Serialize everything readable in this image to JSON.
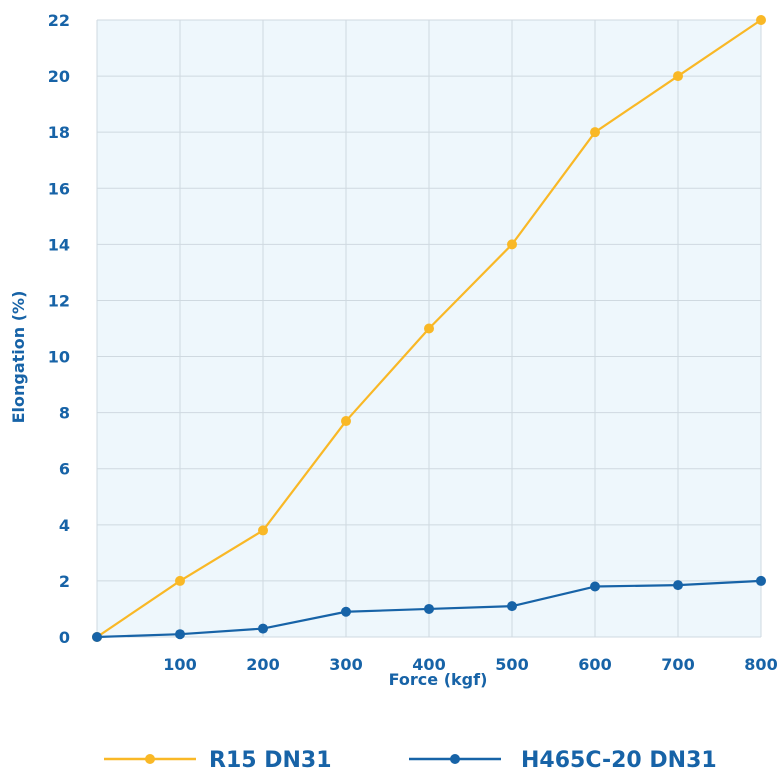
{
  "chart_data": {
    "type": "line",
    "title": "",
    "xlabel": "Force (kgf)",
    "ylabel": "Elongation (%)",
    "x": [
      0,
      100,
      200,
      300,
      400,
      500,
      600,
      700,
      800
    ],
    "x_tick_labels": [
      "100",
      "200",
      "300",
      "400",
      "500",
      "600",
      "700",
      "800"
    ],
    "y_tick_labels": [
      "0",
      "2",
      "4",
      "6",
      "8",
      "10",
      "12",
      "14",
      "16",
      "18",
      "20",
      "22"
    ],
    "xlim": [
      0,
      800
    ],
    "ylim": [
      0,
      22
    ],
    "grid": true,
    "legend_position": "bottom",
    "series": [
      {
        "name": "R15 DN31",
        "color": "#f9b826",
        "values": [
          0,
          2,
          3.8,
          7.7,
          11,
          14,
          18,
          20,
          22
        ]
      },
      {
        "name": "H465C-20 DN31",
        "color": "#1763a7",
        "values": [
          0,
          0.1,
          0.3,
          0.9,
          1.0,
          1.1,
          1.8,
          1.85,
          2.0
        ]
      }
    ],
    "colors": {
      "plot_background": "#eef7fc",
      "grid": "#cfd9e0",
      "text": "#1763a7"
    }
  }
}
